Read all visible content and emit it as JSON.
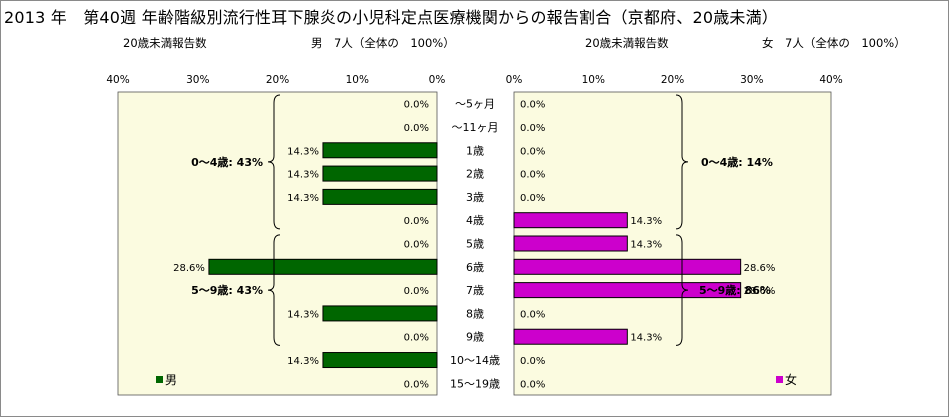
{
  "chart_data": {
    "type": "bar",
    "title": "2013 年　第40週 年齢階級別流行性耳下腺炎の小児科定点医療機関からの報告割合（京都府、20歳未満）",
    "categories": [
      "～5ヶ月",
      "～11ヶ月",
      "1歳",
      "2歳",
      "3歳",
      "4歳",
      "5歳",
      "6歳",
      "7歳",
      "8歳",
      "9歳",
      "10～14歳",
      "15～19歳"
    ],
    "series": [
      {
        "name": "男",
        "color": "#006600",
        "values": [
          0.0,
          0.0,
          14.3,
          14.3,
          14.3,
          0.0,
          0.0,
          28.6,
          0.0,
          14.3,
          0.0,
          14.3,
          0.0
        ],
        "labels": [
          "0.0%",
          "0.0%",
          "14.3%",
          "14.3%",
          "14.3%",
          "0.0%",
          "0.0%",
          "28.6%",
          "0.0%",
          "14.3%",
          "0.0%",
          "14.3%",
          "0.0%"
        ]
      },
      {
        "name": "女",
        "color": "#cc00cc",
        "values": [
          0.0,
          0.0,
          0.0,
          0.0,
          0.0,
          14.3,
          14.3,
          28.6,
          28.6,
          0.0,
          14.3,
          0.0,
          0.0
        ],
        "labels": [
          "0.0%",
          "0.0%",
          "0.0%",
          "0.0%",
          "0.0%",
          "14.3%",
          "14.3%",
          "28.6%",
          "28.6%",
          "0.0%",
          "14.3%",
          "0.0%",
          "0.0%"
        ]
      }
    ],
    "xlim": [
      0,
      40
    ],
    "ticks": [
      "0%",
      "10%",
      "20%",
      "30%",
      "40%"
    ],
    "male_ticks": [
      "40%",
      "30%",
      "20%",
      "10%",
      "0%"
    ],
    "annotations": {
      "male": [
        "0～4歳: 43%",
        "5～9歳: 43%"
      ],
      "female": [
        "0～4歳: 14%",
        "5～9歳: 86%"
      ]
    },
    "grid": false
  },
  "subtitles": {
    "male_reports": "20歳未満報告数",
    "male_total": "男　7人（全体の　100%）",
    "female_reports": "20歳未満報告数",
    "female_total": "女　7人（全体の　100%）"
  },
  "legend": {
    "male": "男",
    "female": "女"
  },
  "colors": {
    "plot_bg": "#fbfbe0",
    "male": "#006600",
    "female": "#cc00cc"
  }
}
